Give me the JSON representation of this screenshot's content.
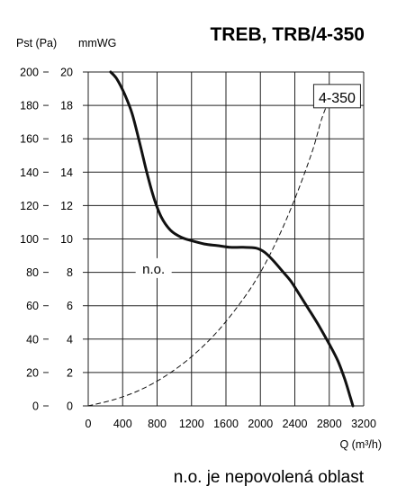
{
  "chart_data": {
    "type": "line",
    "title": "TREB, TRB/4-350",
    "xlabel": "Q (m³/h)",
    "ylabel_left": "Pst (Pa)",
    "ylabel_right": "mmWG",
    "xlim": [
      0,
      3200
    ],
    "ylim": [
      0,
      200
    ],
    "ylim_mmwg": [
      0,
      20
    ],
    "grid": true,
    "x_ticks": [
      0,
      400,
      800,
      1200,
      1600,
      2000,
      2400,
      2800,
      3200
    ],
    "y_ticks_pa": [
      0,
      20,
      40,
      60,
      80,
      100,
      120,
      140,
      160,
      180,
      200
    ],
    "y_ticks_mmwg": [
      0,
      2,
      4,
      6,
      8,
      10,
      12,
      14,
      16,
      18,
      20
    ],
    "series": [
      {
        "name": "",
        "style": "solid",
        "color": "#111111",
        "points": [
          [
            260,
            200
          ],
          [
            330,
            196
          ],
          [
            420,
            187
          ],
          [
            510,
            175
          ],
          [
            600,
            157
          ],
          [
            680,
            140
          ],
          [
            760,
            125
          ],
          [
            850,
            113
          ],
          [
            960,
            105
          ],
          [
            1080,
            101
          ],
          [
            1200,
            99
          ],
          [
            1350,
            97
          ],
          [
            1500,
            96
          ],
          [
            1650,
            95
          ],
          [
            1800,
            95
          ],
          [
            1950,
            94.5
          ],
          [
            2050,
            92
          ],
          [
            2150,
            87
          ],
          [
            2250,
            81
          ],
          [
            2350,
            75
          ],
          [
            2450,
            67
          ],
          [
            2560,
            58
          ],
          [
            2680,
            48
          ],
          [
            2800,
            37
          ],
          [
            2900,
            27
          ],
          [
            2980,
            16
          ],
          [
            3040,
            6
          ],
          [
            3075,
            0
          ]
        ]
      },
      {
        "name": "4-350",
        "style": "dashed",
        "color": "#111111",
        "points": [
          [
            0,
            0
          ],
          [
            300,
            3.8
          ],
          [
            600,
            9.5
          ],
          [
            900,
            18
          ],
          [
            1200,
            29.5
          ],
          [
            1500,
            44.5
          ],
          [
            1800,
            64
          ],
          [
            2000,
            80
          ],
          [
            2200,
            100
          ],
          [
            2400,
            124
          ],
          [
            2600,
            152
          ],
          [
            2700,
            170
          ],
          [
            2770,
            180
          ]
        ]
      }
    ],
    "annotations": [
      {
        "text": "n.o.",
        "x": 760,
        "y": 82
      }
    ],
    "series_label": {
      "text": "4-350",
      "x": 2870,
      "y": 185
    },
    "footnote": "n.o. je nepovolená oblast"
  }
}
